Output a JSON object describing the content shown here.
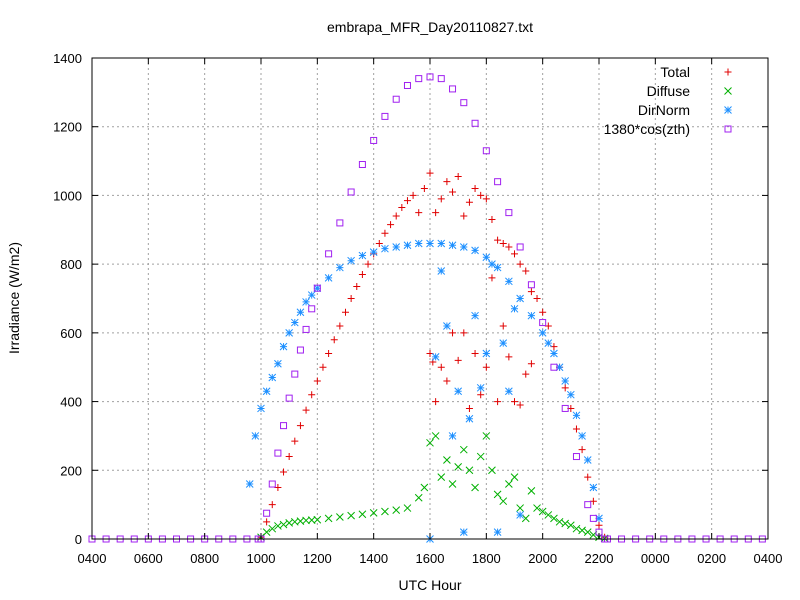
{
  "chart_data": {
    "type": "scatter",
    "title": "embrapa_MFR_Day20110827.txt",
    "xlabel": "UTC Hour",
    "ylabel": "Irradiance (W/m2)",
    "xlim": [
      4,
      28
    ],
    "ylim": [
      0,
      1400
    ],
    "x_ticks": [
      {
        "value": 4,
        "label": "0400"
      },
      {
        "value": 6,
        "label": "0600"
      },
      {
        "value": 8,
        "label": "0800"
      },
      {
        "value": 10,
        "label": "1000"
      },
      {
        "value": 12,
        "label": "1200"
      },
      {
        "value": 14,
        "label": "1400"
      },
      {
        "value": 16,
        "label": "1600"
      },
      {
        "value": 18,
        "label": "1800"
      },
      {
        "value": 20,
        "label": "2000"
      },
      {
        "value": 22,
        "label": "2200"
      },
      {
        "value": 24,
        "label": "0000"
      },
      {
        "value": 26,
        "label": "0200"
      },
      {
        "value": 28,
        "label": "0400"
      }
    ],
    "y_ticks": [
      0,
      200,
      400,
      600,
      800,
      1000,
      1200,
      1400
    ],
    "grid": true,
    "legend_position": "top-right",
    "series": [
      {
        "name": "Total",
        "marker": "plus",
        "color": "#e00000",
        "x": [
          10.0,
          10.2,
          10.4,
          10.6,
          10.8,
          11.0,
          11.2,
          11.4,
          11.6,
          11.8,
          12.0,
          12.2,
          12.4,
          12.6,
          12.8,
          13.0,
          13.2,
          13.4,
          13.6,
          13.8,
          14.0,
          14.2,
          14.4,
          14.6,
          14.8,
          15.0,
          15.2,
          15.4,
          15.6,
          15.8,
          16.0,
          16.1,
          16.2,
          16.4,
          16.6,
          16.8,
          17.0,
          17.2,
          17.4,
          17.6,
          17.8,
          18.0,
          18.2,
          18.4,
          18.6,
          18.8,
          19.0,
          19.2,
          19.4,
          19.6,
          19.8,
          20.0,
          20.2,
          20.4,
          20.6,
          20.8,
          21.0,
          21.2,
          21.4,
          21.6,
          21.8,
          22.0,
          22.2
        ],
        "y": [
          5,
          50,
          100,
          150,
          195,
          240,
          285,
          330,
          375,
          420,
          460,
          500,
          540,
          580,
          620,
          660,
          700,
          735,
          770,
          800,
          830,
          860,
          890,
          915,
          940,
          965,
          985,
          1000,
          950,
          1020,
          1065,
          515,
          950,
          990,
          1040,
          1010,
          1055,
          940,
          980,
          1020,
          1000,
          990,
          930,
          870,
          860,
          850,
          830,
          800,
          780,
          720,
          700,
          660,
          620,
          560,
          500,
          440,
          380,
          320,
          260,
          180,
          110,
          40,
          5
        ]
      },
      {
        "name": "",
        "marker": "plus",
        "color": "#e00000",
        "x": [
          16.0,
          16.2,
          16.4,
          16.6,
          16.8,
          17.0,
          17.2,
          17.4,
          17.6,
          17.8,
          18.0,
          18.2,
          18.4,
          18.6,
          18.8,
          19.0,
          19.2,
          19.4,
          19.6
        ],
        "y": [
          540,
          400,
          500,
          460,
          600,
          520,
          600,
          380,
          540,
          420,
          500,
          760,
          400,
          620,
          530,
          400,
          390,
          480,
          510
        ]
      },
      {
        "name": "Diffuse",
        "marker": "cross",
        "color": "#00b000",
        "x": [
          10.0,
          10.2,
          10.4,
          10.6,
          10.8,
          11.0,
          11.2,
          11.4,
          11.6,
          11.8,
          12.0,
          12.4,
          12.8,
          13.2,
          13.6,
          14.0,
          14.4,
          14.8,
          15.2,
          15.6,
          15.8,
          16.0,
          16.2,
          16.4,
          16.6,
          16.8,
          17.0,
          17.2,
          17.4,
          17.6,
          17.8,
          18.0,
          18.2,
          18.4,
          18.6,
          18.8,
          19.0,
          19.2,
          19.4,
          19.6,
          19.8,
          20.0,
          20.2,
          20.4,
          20.6,
          20.8,
          21.0,
          21.2,
          21.4,
          21.6,
          21.8,
          22.0,
          22.2
        ],
        "y": [
          5,
          20,
          30,
          38,
          42,
          47,
          50,
          52,
          54,
          55,
          56,
          60,
          64,
          68,
          72,
          76,
          80,
          84,
          90,
          120,
          150,
          280,
          300,
          180,
          230,
          160,
          210,
          260,
          200,
          150,
          240,
          300,
          200,
          130,
          110,
          160,
          180,
          90,
          60,
          140,
          90,
          80,
          70,
          60,
          50,
          45,
          40,
          30,
          25,
          20,
          12,
          5,
          2
        ]
      },
      {
        "name": "DirNorm",
        "marker": "star",
        "color": "#1e90ff",
        "x": [
          9.6,
          9.8,
          10.0,
          10.2,
          10.4,
          10.6,
          10.8,
          11.0,
          11.2,
          11.4,
          11.6,
          11.8,
          12.0,
          12.4,
          12.8,
          13.2,
          13.6,
          14.0,
          14.4,
          14.8,
          15.2,
          15.6,
          16.0,
          16.4,
          16.8,
          17.2,
          17.6,
          18.0,
          18.4,
          18.8,
          19.2,
          19.6,
          20.0,
          20.2,
          20.4,
          20.6,
          20.8,
          21.0,
          21.2,
          21.4,
          21.6,
          21.8,
          22.0
        ],
        "y": [
          160,
          300,
          380,
          430,
          470,
          510,
          560,
          600,
          630,
          660,
          690,
          710,
          730,
          760,
          790,
          810,
          825,
          835,
          845,
          850,
          855,
          860,
          860,
          860,
          855,
          850,
          840,
          820,
          790,
          750,
          700,
          650,
          600,
          570,
          540,
          500,
          460,
          420,
          360,
          300,
          230,
          150,
          60
        ]
      },
      {
        "name": "",
        "marker": "star",
        "color": "#1e90ff",
        "x": [
          16.0,
          16.2,
          16.4,
          16.6,
          16.8,
          17.0,
          17.2,
          17.4,
          17.6,
          17.8,
          18.0,
          18.2,
          18.4,
          18.6,
          18.8,
          19.0,
          19.2
        ],
        "y": [
          0,
          530,
          780,
          620,
          300,
          430,
          20,
          350,
          650,
          440,
          540,
          800,
          20,
          570,
          430,
          670,
          70
        ]
      },
      {
        "name": "1380*cos(zth)",
        "marker": "square",
        "color": "#a020f0",
        "x": [
          10.0,
          10.2,
          10.4,
          10.6,
          10.8,
          11.0,
          11.2,
          11.4,
          11.6,
          11.8,
          12.0,
          12.4,
          12.8,
          13.2,
          13.6,
          14.0,
          14.4,
          14.8,
          15.2,
          15.6,
          16.0,
          16.4,
          16.8,
          17.2,
          17.6,
          18.0,
          18.4,
          18.8,
          19.2,
          19.6,
          20.0,
          20.4,
          20.8,
          21.2,
          21.6,
          21.8,
          22.0,
          22.2
        ],
        "y": [
          0,
          75,
          160,
          250,
          330,
          410,
          480,
          550,
          610,
          670,
          730,
          830,
          920,
          1010,
          1090,
          1160,
          1230,
          1280,
          1320,
          1340,
          1345,
          1340,
          1310,
          1270,
          1210,
          1130,
          1040,
          950,
          850,
          740,
          630,
          500,
          380,
          240,
          100,
          60,
          20,
          0
        ]
      },
      {
        "name": "",
        "marker": "square",
        "color": "#a020f0",
        "x": [
          4.0,
          4.5,
          5.0,
          5.5,
          6.0,
          6.5,
          7.0,
          7.5,
          8.0,
          8.5,
          9.0,
          9.5,
          9.9,
          22.3,
          22.8,
          23.3,
          23.8,
          24.3,
          24.8,
          25.3,
          25.8,
          26.3,
          26.8,
          27.3,
          27.8
        ],
        "y": [
          0,
          0,
          0,
          0,
          0,
          0,
          0,
          0,
          0,
          0,
          0,
          0,
          0,
          0,
          0,
          0,
          0,
          0,
          0,
          0,
          0,
          0,
          0,
          0,
          0
        ]
      }
    ]
  }
}
